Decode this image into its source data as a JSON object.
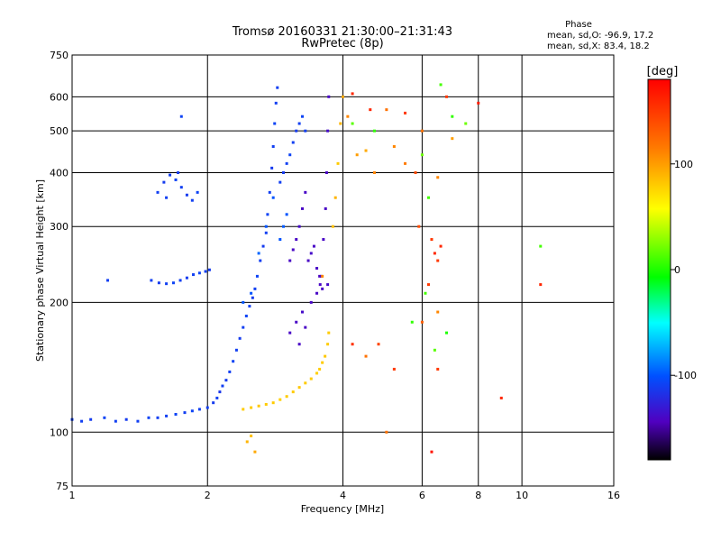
{
  "chart_data": {
    "type": "scatter",
    "title": "Tromsø 20160331 21:30:00–21:31:43",
    "subtitle": "RwPretec (8p)",
    "xlabel": "Frequency [MHz]",
    "ylabel": "Stationary phase Virtual Height [km]",
    "x_scale": "log",
    "y_scale": "log",
    "xlim": [
      1,
      16
    ],
    "ylim": [
      75,
      750
    ],
    "xticks": [
      1,
      2,
      4,
      6,
      8,
      10,
      16
    ],
    "xtick_labels": [
      "1",
      "2",
      "4",
      "6",
      "8",
      "10",
      "16"
    ],
    "yticks": [
      75,
      100,
      200,
      300,
      400,
      500,
      600,
      750
    ],
    "ytick_labels": [
      "75",
      "100",
      "200",
      "300",
      "400",
      "500",
      "600",
      "750"
    ],
    "grid": true,
    "phase_header": "Phase",
    "stats": [
      "mean, sd,O: -96.9, 17.2",
      "mean, sd,X:  83.4, 18.2"
    ],
    "colorbar": {
      "label": "[deg]",
      "range": [
        -180,
        180
      ],
      "ticks": [
        100,
        0,
        -100
      ],
      "tick_labels": [
        "100",
        "0",
        "-100"
      ]
    },
    "series": [
      {
        "points": [
          [
            1.0,
            107,
            -110
          ],
          [
            1.05,
            106,
            -110
          ],
          [
            1.1,
            107,
            -112
          ],
          [
            1.18,
            108,
            -108
          ],
          [
            1.25,
            106,
            -110
          ],
          [
            1.32,
            107,
            -112
          ],
          [
            1.4,
            106,
            -110
          ],
          [
            1.48,
            108,
            -108
          ],
          [
            1.55,
            108,
            -110
          ],
          [
            1.62,
            109,
            -110
          ],
          [
            1.7,
            110,
            -108
          ],
          [
            1.78,
            111,
            -110
          ],
          [
            1.85,
            112,
            -108
          ],
          [
            1.92,
            113,
            -110
          ],
          [
            2.0,
            114,
            -110
          ],
          [
            2.06,
            117,
            -112
          ],
          [
            2.1,
            120,
            -110
          ],
          [
            2.13,
            124,
            -115
          ],
          [
            2.16,
            128,
            -110
          ],
          [
            2.2,
            132,
            -112
          ],
          [
            2.24,
            138,
            -110
          ],
          [
            2.28,
            146,
            -108
          ],
          [
            2.32,
            155,
            -110
          ],
          [
            2.36,
            165,
            -112
          ],
          [
            2.4,
            175,
            -110
          ],
          [
            2.44,
            186,
            -108
          ],
          [
            2.48,
            196,
            -110
          ],
          [
            2.52,
            205,
            -112
          ],
          [
            2.55,
            215,
            -110
          ],
          [
            2.58,
            230,
            -108
          ],
          [
            2.62,
            250,
            -110
          ],
          [
            2.66,
            270,
            -112
          ],
          [
            2.7,
            290,
            -110
          ],
          [
            2.72,
            320,
            -108
          ],
          [
            2.75,
            360,
            -110
          ],
          [
            2.78,
            410,
            -112
          ],
          [
            2.8,
            460,
            -110
          ],
          [
            2.82,
            520,
            -108
          ],
          [
            2.84,
            580,
            -110
          ],
          [
            2.86,
            630,
            -110
          ],
          [
            2.9,
            380,
            -110
          ],
          [
            2.95,
            400,
            -112
          ],
          [
            3.0,
            420,
            -110
          ],
          [
            3.05,
            440,
            -108
          ],
          [
            3.1,
            470,
            -110
          ],
          [
            3.15,
            500,
            -112
          ],
          [
            3.2,
            520,
            -110
          ],
          [
            3.25,
            540,
            -108
          ],
          [
            3.3,
            500,
            -110
          ],
          [
            1.55,
            360,
            -110
          ],
          [
            1.6,
            380,
            -112
          ],
          [
            1.65,
            395,
            -110
          ],
          [
            1.7,
            385,
            -108
          ],
          [
            1.75,
            370,
            -110
          ],
          [
            1.8,
            355,
            -112
          ],
          [
            1.85,
            345,
            -110
          ],
          [
            1.9,
            360,
            -108
          ],
          [
            1.62,
            350,
            -110
          ],
          [
            1.72,
            400,
            -112
          ],
          [
            1.5,
            225,
            -110
          ],
          [
            1.56,
            222,
            -112
          ],
          [
            1.62,
            221,
            -110
          ],
          [
            1.68,
            222,
            -108
          ],
          [
            1.74,
            225,
            -110
          ],
          [
            1.8,
            228,
            -112
          ],
          [
            1.86,
            232,
            -110
          ],
          [
            1.92,
            234,
            -108
          ],
          [
            1.98,
            236,
            -110
          ],
          [
            2.02,
            238,
            -112
          ],
          [
            1.2,
            225,
            -110
          ],
          [
            1.75,
            540,
            -108
          ],
          [
            2.4,
            200,
            -100
          ],
          [
            2.5,
            210,
            -100
          ],
          [
            2.6,
            260,
            -95
          ],
          [
            2.7,
            300,
            -100
          ],
          [
            2.8,
            350,
            -100
          ],
          [
            2.9,
            280,
            -100
          ],
          [
            2.95,
            300,
            -98
          ],
          [
            3.0,
            320,
            -100
          ],
          [
            3.05,
            250,
            -140
          ],
          [
            3.1,
            265,
            -140
          ],
          [
            3.15,
            280,
            -140
          ],
          [
            3.2,
            300,
            -138
          ],
          [
            3.25,
            330,
            -140
          ],
          [
            3.3,
            360,
            -140
          ],
          [
            3.35,
            250,
            -140
          ],
          [
            3.4,
            260,
            -138
          ],
          [
            3.45,
            270,
            -140
          ],
          [
            3.5,
            240,
            -140
          ],
          [
            3.55,
            230,
            -142
          ],
          [
            3.58,
            230,
            -140
          ],
          [
            3.62,
            280,
            -140
          ],
          [
            3.66,
            330,
            -140
          ],
          [
            3.68,
            400,
            -140
          ],
          [
            3.7,
            500,
            -138
          ],
          [
            3.72,
            600,
            -140
          ],
          [
            3.05,
            170,
            -140
          ],
          [
            3.15,
            180,
            -140
          ],
          [
            3.25,
            190,
            -138
          ],
          [
            3.4,
            200,
            -140
          ],
          [
            3.5,
            210,
            -140
          ],
          [
            3.56,
            220,
            -140
          ],
          [
            3.2,
            160,
            -140
          ],
          [
            3.3,
            175,
            -140
          ],
          [
            3.6,
            215,
            -140
          ],
          [
            3.7,
            220,
            -138
          ]
        ]
      },
      {
        "points": [
          [
            2.4,
            113,
            80
          ],
          [
            2.5,
            114,
            80
          ],
          [
            2.6,
            115,
            82
          ],
          [
            2.7,
            116,
            80
          ],
          [
            2.8,
            117,
            80
          ],
          [
            2.9,
            119,
            78
          ],
          [
            3.0,
            121,
            80
          ],
          [
            3.1,
            124,
            80
          ],
          [
            3.2,
            127,
            82
          ],
          [
            3.3,
            130,
            80
          ],
          [
            3.4,
            133,
            80
          ],
          [
            3.5,
            137,
            78
          ],
          [
            3.55,
            140,
            80
          ],
          [
            3.6,
            145,
            80
          ],
          [
            3.65,
            150,
            82
          ],
          [
            3.7,
            160,
            80
          ],
          [
            3.72,
            170,
            80
          ],
          [
            2.45,
            95,
            90
          ],
          [
            2.5,
            98,
            85
          ],
          [
            2.55,
            90,
            95
          ],
          [
            3.8,
            300,
            85
          ],
          [
            3.85,
            350,
            90
          ],
          [
            3.9,
            420,
            80
          ],
          [
            3.95,
            520,
            90
          ],
          [
            4.0,
            600,
            95
          ],
          [
            4.1,
            540,
            110
          ],
          [
            4.3,
            440,
            100
          ],
          [
            4.5,
            450,
            95
          ],
          [
            4.7,
            400,
            110
          ],
          [
            5.0,
            560,
            120
          ],
          [
            5.2,
            460,
            110
          ],
          [
            5.5,
            420,
            115
          ],
          [
            6.0,
            500,
            120
          ],
          [
            6.5,
            390,
            110
          ],
          [
            7.0,
            480,
            100
          ],
          [
            5.0,
            100,
            120
          ],
          [
            4.5,
            150,
            120
          ],
          [
            6.0,
            180,
            130
          ],
          [
            6.5,
            190,
            110
          ],
          [
            3.6,
            230,
            110
          ]
        ]
      },
      {
        "points": [
          [
            5.8,
            400,
            140
          ],
          [
            6.3,
            280,
            150
          ],
          [
            6.4,
            260,
            160
          ],
          [
            6.5,
            250,
            150
          ],
          [
            6.6,
            270,
            160
          ],
          [
            6.8,
            600,
            150
          ],
          [
            5.5,
            550,
            150
          ],
          [
            4.6,
            560,
            160
          ],
          [
            4.2,
            160,
            155
          ],
          [
            6.2,
            220,
            150
          ],
          [
            8.0,
            580,
            165
          ],
          [
            9.0,
            120,
            160
          ],
          [
            11.0,
            220,
            160
          ],
          [
            6.5,
            140,
            150
          ],
          [
            6.3,
            90,
            170
          ],
          [
            4.8,
            160,
            145
          ],
          [
            5.9,
            300,
            140
          ],
          [
            5.2,
            140,
            150
          ],
          [
            4.2,
            610,
            160
          ]
        ]
      },
      {
        "points": [
          [
            6.6,
            640,
            10
          ],
          [
            7.0,
            540,
            5
          ],
          [
            7.5,
            520,
            20
          ],
          [
            6.8,
            170,
            0
          ],
          [
            6.4,
            155,
            15
          ],
          [
            6.2,
            350,
            10
          ],
          [
            6.0,
            440,
            20
          ],
          [
            11.0,
            270,
            10
          ],
          [
            5.7,
            180,
            5
          ],
          [
            6.1,
            210,
            10
          ],
          [
            4.7,
            500,
            5
          ],
          [
            4.2,
            520,
            15
          ]
        ]
      }
    ]
  }
}
